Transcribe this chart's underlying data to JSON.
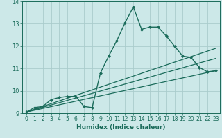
{
  "xlabel": "Humidex (Indice chaleur)",
  "bg_color": "#cce8e8",
  "grid_color": "#aacccc",
  "line_color": "#1a6b5a",
  "xlim": [
    -0.5,
    23.5
  ],
  "ylim": [
    9,
    14
  ],
  "xticks": [
    0,
    1,
    2,
    3,
    4,
    5,
    6,
    7,
    8,
    9,
    10,
    11,
    12,
    13,
    14,
    15,
    16,
    17,
    18,
    19,
    20,
    21,
    22,
    23
  ],
  "yticks": [
    9,
    10,
    11,
    12,
    13,
    14
  ],
  "lines": [
    {
      "x": [
        0,
        1,
        2,
        3,
        4,
        5,
        6,
        7,
        8,
        9,
        10,
        11,
        12,
        13,
        14,
        15,
        16,
        17,
        18,
        19,
        20,
        21,
        22,
        23
      ],
      "y": [
        9.05,
        9.25,
        9.3,
        9.6,
        9.7,
        9.75,
        9.75,
        9.3,
        9.25,
        10.8,
        11.55,
        12.25,
        13.05,
        13.75,
        12.75,
        12.85,
        12.85,
        12.45,
        12.0,
        11.55,
        11.5,
        11.05,
        10.85,
        10.9
      ],
      "marker": "D",
      "markersize": 2.5,
      "linewidth": 1.0,
      "zorder": 4
    },
    {
      "x": [
        0,
        23
      ],
      "y": [
        9.05,
        10.9
      ],
      "marker": null,
      "linewidth": 0.9,
      "zorder": 2
    },
    {
      "x": [
        0,
        23
      ],
      "y": [
        9.05,
        11.45
      ],
      "marker": null,
      "linewidth": 0.9,
      "zorder": 2
    },
    {
      "x": [
        0,
        23
      ],
      "y": [
        9.05,
        11.9
      ],
      "marker": null,
      "linewidth": 0.9,
      "zorder": 2
    }
  ]
}
